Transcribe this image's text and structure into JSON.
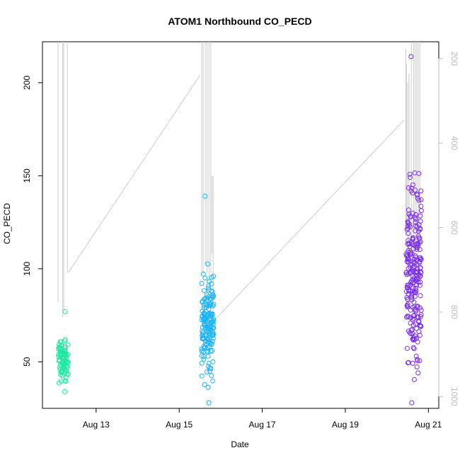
{
  "chart_data": {
    "type": "scatter",
    "title": "ATOM1 Northbound CO_PECD",
    "xlabel": "Date",
    "ylabel": "CO_PECD",
    "xlim": [
      "2016-08-11T17:00",
      "2016-08-21T06:00"
    ],
    "ylim": [
      25,
      222
    ],
    "y_ticks": [
      50,
      100,
      150,
      200
    ],
    "x_ticks": [
      {
        "value": "2016-08-13",
        "label": "Aug 13"
      },
      {
        "value": "2016-08-15",
        "label": "Aug 15"
      },
      {
        "value": "2016-08-17",
        "label": "Aug 17"
      },
      {
        "value": "2016-08-19",
        "label": "Aug 19"
      },
      {
        "value": "2016-08-21",
        "label": "Aug 21"
      }
    ],
    "y2_axis": {
      "side": "right",
      "color": "#bdbdbd",
      "inverted": true,
      "lim": [
        1028,
        160
      ],
      "ticks": [
        200,
        400,
        600,
        800,
        1000
      ]
    },
    "colormap": "rainbow (cyan-green early, blue mid, violet late)",
    "clusters": [
      {
        "start": "2016-08-12T02:00",
        "end": "2016-08-12T08:00",
        "color": "#1de9a0",
        "n": 90,
        "y_range": [
          34,
          77
        ]
      },
      {
        "start": "2016-08-15T13:00",
        "end": "2016-08-15T20:00",
        "color": "#1ab2ff",
        "n": 160,
        "y_range": [
          28,
          139
        ]
      },
      {
        "start": "2016-08-20T11:00",
        "end": "2016-08-20T20:00",
        "color": "#7a2cf0",
        "n": 240,
        "y_range": [
          28,
          214
        ]
      }
    ],
    "secondary_series": {
      "color": "#cccccc",
      "description_free": true,
      "segments": [
        {
          "t0": "2016-08-12T08:00",
          "y0": 98,
          "t1": "2016-08-15T12:00",
          "y1": 204
        },
        {
          "t0": "2016-08-15T21:00",
          "y0": 73,
          "t1": "2016-08-20T10:00",
          "y1": 180
        }
      ]
    },
    "grid": false,
    "legend": "none"
  }
}
